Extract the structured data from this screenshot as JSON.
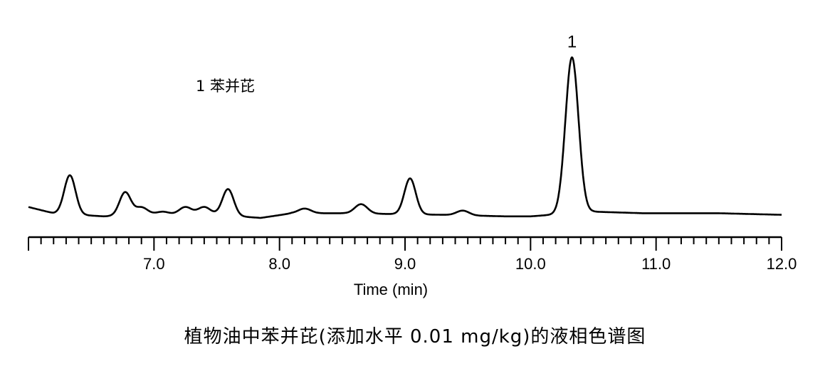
{
  "chart_data": {
    "type": "line",
    "title": "",
    "xlabel": "Time (min)",
    "ylabel": "",
    "xlim": [
      6.0,
      12.0
    ],
    "ylim": [
      0,
      100
    ],
    "x_ticks": [
      "7.0",
      "8.0",
      "9.0",
      "10.0",
      "11.0",
      "12.0"
    ],
    "minor_tick_step": 0.1,
    "grid": false,
    "legend_entries": [
      "1 苯并芘"
    ],
    "peak_labels": [
      {
        "text": "1",
        "x": 10.33
      }
    ],
    "peaks": [
      {
        "x": 6.33,
        "height": 25
      },
      {
        "x": 6.77,
        "height": 15
      },
      {
        "x": 6.9,
        "height": 5
      },
      {
        "x": 7.07,
        "height": 2
      },
      {
        "x": 7.25,
        "height": 5
      },
      {
        "x": 7.4,
        "height": 5
      },
      {
        "x": 7.59,
        "height": 17
      },
      {
        "x": 8.2,
        "height": 3
      },
      {
        "x": 8.65,
        "height": 6
      },
      {
        "x": 9.04,
        "height": 23
      },
      {
        "x": 9.46,
        "height": 3
      },
      {
        "x": 10.33,
        "height": 100
      }
    ],
    "baseline": [
      [
        6.0,
        7
      ],
      [
        6.2,
        3
      ],
      [
        6.6,
        1
      ],
      [
        7.0,
        2
      ],
      [
        7.5,
        2
      ],
      [
        7.85,
        0
      ],
      [
        8.1,
        3
      ],
      [
        8.5,
        3
      ],
      [
        9.3,
        2
      ],
      [
        9.8,
        1
      ],
      [
        10.0,
        1
      ],
      [
        10.5,
        4
      ],
      [
        10.9,
        3
      ],
      [
        11.5,
        3
      ],
      [
        12.0,
        2
      ]
    ]
  },
  "caption": "植物油中苯并芘(添加水平 0.01 mg/kg)的液相色谱图"
}
